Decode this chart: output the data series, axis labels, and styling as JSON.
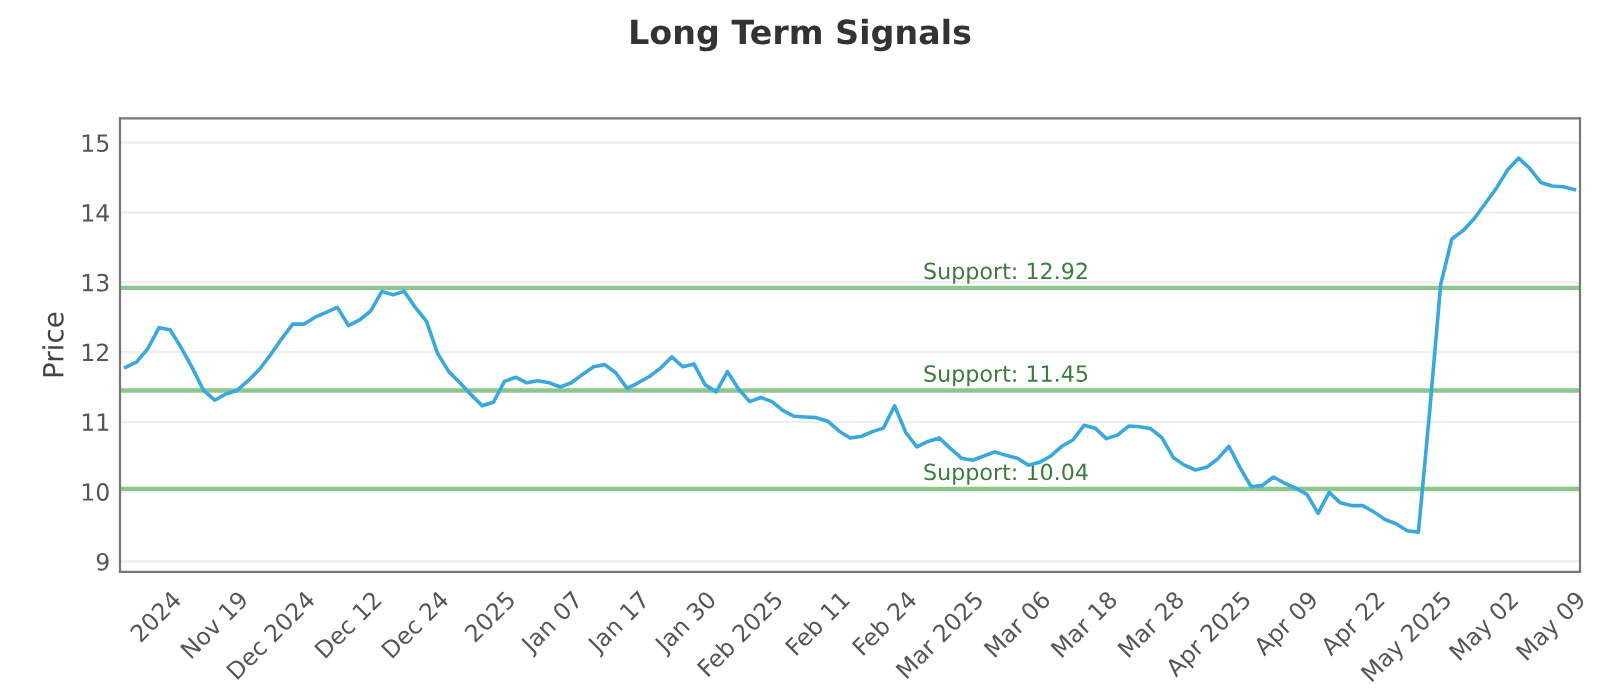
{
  "chart_data": {
    "type": "line",
    "title": "Long Term Signals",
    "ylabel": "Price",
    "categories": [
      null,
      null,
      null,
      null,
      "2024",
      null,
      null,
      null,
      null,
      null,
      "Nov 19",
      null,
      null,
      null,
      null,
      null,
      "Dec 2024",
      null,
      null,
      null,
      null,
      null,
      "Dec 12",
      null,
      null,
      null,
      null,
      null,
      "Dec 24",
      null,
      null,
      null,
      null,
      null,
      "2025",
      null,
      null,
      null,
      null,
      null,
      "Jan 07",
      null,
      null,
      null,
      null,
      null,
      "Jan 17",
      null,
      null,
      null,
      null,
      null,
      "Jan 30",
      null,
      null,
      null,
      null,
      null,
      "Feb 2025",
      null,
      null,
      null,
      null,
      null,
      "Feb 11",
      null,
      null,
      null,
      null,
      null,
      "Feb 24",
      null,
      null,
      null,
      null,
      null,
      "Mar 2025",
      null,
      null,
      null,
      null,
      null,
      "Mar 06",
      null,
      null,
      null,
      null,
      null,
      "Mar 18",
      null,
      null,
      null,
      null,
      null,
      "Mar 28",
      null,
      null,
      null,
      null,
      null,
      "Apr 2025",
      null,
      null,
      null,
      null,
      null,
      "Apr 09",
      null,
      null,
      null,
      null,
      null,
      "Apr 22",
      null,
      null,
      null,
      null,
      null,
      "May 2025",
      null,
      null,
      null,
      null,
      null,
      "May 02",
      null,
      null,
      null,
      null,
      null,
      "May 09"
    ],
    "series": [
      {
        "color": "#3aa8dc",
        "values": [
          11.78,
          11.86,
          12.05,
          12.35,
          12.32,
          12.06,
          11.77,
          11.45,
          11.31,
          11.4,
          11.45,
          11.59,
          11.75,
          11.96,
          12.19,
          12.4,
          12.4,
          12.5,
          12.57,
          12.64,
          12.38,
          12.46,
          12.59,
          12.87,
          12.82,
          12.87,
          12.64,
          12.44,
          11.98,
          11.72,
          11.56,
          11.39,
          11.23,
          11.28,
          11.58,
          11.64,
          11.56,
          11.59,
          11.56,
          11.5,
          11.56,
          11.68,
          11.79,
          11.82,
          11.7,
          11.48,
          11.56,
          11.65,
          11.77,
          11.93,
          11.79,
          11.83,
          11.53,
          11.43,
          11.72,
          11.47,
          11.29,
          11.35,
          11.29,
          11.16,
          11.08,
          11.07,
          11.06,
          11.01,
          10.87,
          10.77,
          10.79,
          10.86,
          10.91,
          11.23,
          10.85,
          10.64,
          10.72,
          10.77,
          10.62,
          10.48,
          10.45,
          10.51,
          10.57,
          10.52,
          10.48,
          10.38,
          10.42,
          10.51,
          10.65,
          10.74,
          10.95,
          10.91,
          10.76,
          10.81,
          10.94,
          10.93,
          10.9,
          10.77,
          10.49,
          10.38,
          10.31,
          10.35,
          10.47,
          10.65,
          10.34,
          10.07,
          10.09,
          10.21,
          10.12,
          10.05,
          9.96,
          9.69,
          9.99,
          9.84,
          9.8,
          9.8,
          9.71,
          9.6,
          9.54,
          9.44,
          9.42,
          11.13,
          12.97,
          13.62,
          13.74,
          13.91,
          14.13,
          14.35,
          14.61,
          14.78,
          14.63,
          14.43,
          14.38,
          14.37,
          14.33
        ]
      }
    ],
    "ylim": [
      8.85,
      15.35
    ],
    "yticks": [
      9,
      10,
      11,
      12,
      13,
      14,
      15
    ],
    "grid": "y",
    "legend": false,
    "marker": "none",
    "line_style": "solid",
    "ref_lines": [
      {
        "axis": "y",
        "value": 12.92,
        "label": "Support: 12.92",
        "color": "#8cc68c"
      },
      {
        "axis": "y",
        "value": 11.45,
        "label": "Support: 11.45",
        "color": "#8cc68c"
      },
      {
        "axis": "y",
        "value": 10.04,
        "label": "Support: 10.04",
        "color": "#8cc68c"
      }
    ]
  }
}
